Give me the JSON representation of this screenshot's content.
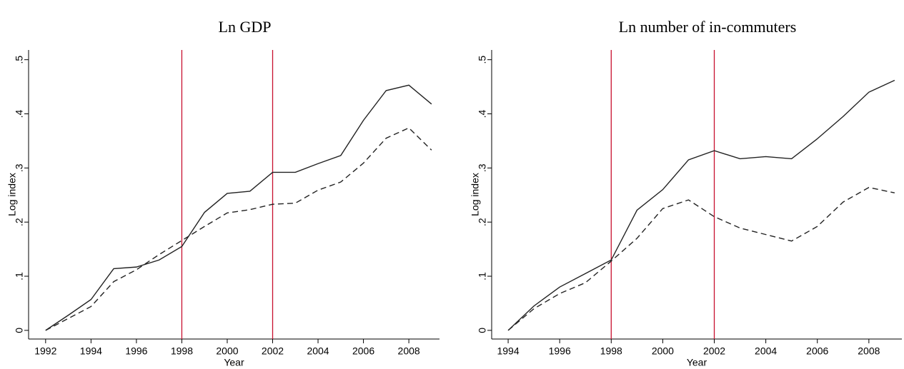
{
  "chart_data": [
    {
      "type": "line",
      "title": "Ln GDP",
      "xlabel": "Year",
      "ylabel": "Log index",
      "x": [
        1992,
        1993,
        1994,
        1995,
        1996,
        1997,
        1998,
        1999,
        2000,
        2001,
        2002,
        2003,
        2004,
        2005,
        2006,
        2007,
        2008,
        2009
      ],
      "series": [
        {
          "color": "#222222",
          "dash": "none",
          "values": [
            0,
            0.028,
            0.057,
            0.114,
            0.117,
            0.13,
            0.155,
            0.218,
            0.253,
            0.257,
            0.292,
            0.292,
            0.308,
            0.323,
            0.388,
            0.443,
            0.453,
            0.418
          ]
        },
        {
          "color": "#222222",
          "dash": "8 5",
          "values": [
            0,
            0.022,
            0.044,
            0.09,
            0.112,
            0.14,
            0.166,
            0.192,
            0.217,
            0.223,
            0.233,
            0.235,
            0.259,
            0.274,
            0.309,
            0.355,
            0.374,
            0.333
          ]
        }
      ],
      "vlines": [
        1998,
        2002
      ],
      "vline_color": "#c8102e",
      "xlim": [
        1991.25,
        2009.35
      ],
      "xticks": [
        1992,
        1994,
        1996,
        1998,
        2000,
        2002,
        2004,
        2006,
        2008
      ],
      "ylim": [
        -0.016,
        0.518
      ],
      "yticks": [
        0,
        {
          "value": 0.1,
          "label": ".1"
        },
        {
          "value": 0.2,
          "label": ".2"
        },
        {
          "value": 0.3,
          "label": ".3"
        },
        {
          "value": 0.4,
          "label": ".4"
        },
        {
          "value": 0.5,
          "label": ".5"
        }
      ]
    },
    {
      "type": "line",
      "title": "Ln number of in-commuters",
      "xlabel": "Year",
      "ylabel": "Log index",
      "x": [
        1994,
        1995,
        1996,
        1997,
        1998,
        1999,
        2000,
        2001,
        2002,
        2003,
        2004,
        2005,
        2006,
        2007,
        2008,
        2009
      ],
      "series": [
        {
          "color": "#222222",
          "dash": "none",
          "values": [
            0,
            0.045,
            0.08,
            0.105,
            0.13,
            0.222,
            0.26,
            0.315,
            0.332,
            0.317,
            0.321,
            0.317,
            0.354,
            0.395,
            0.44,
            0.462
          ]
        },
        {
          "color": "#222222",
          "dash": "8 5",
          "values": [
            0,
            0.04,
            0.068,
            0.088,
            0.128,
            0.17,
            0.225,
            0.241,
            0.21,
            0.189,
            0.177,
            0.165,
            0.192,
            0.237,
            0.264,
            0.254
          ]
        }
      ],
      "vlines": [
        1998,
        2002
      ],
      "vline_color": "#c8102e",
      "xlim": [
        1993.36,
        2009.28
      ],
      "xticks": [
        1994,
        1996,
        1998,
        2000,
        2002,
        2004,
        2006,
        2008
      ],
      "ylim": [
        -0.016,
        0.518
      ],
      "yticks": [
        0,
        {
          "value": 0.1,
          "label": ".1"
        },
        {
          "value": 0.2,
          "label": ".2"
        },
        {
          "value": 0.3,
          "label": ".3"
        },
        {
          "value": 0.4,
          "label": ".4"
        },
        {
          "value": 0.5,
          "label": ".5"
        }
      ]
    }
  ]
}
